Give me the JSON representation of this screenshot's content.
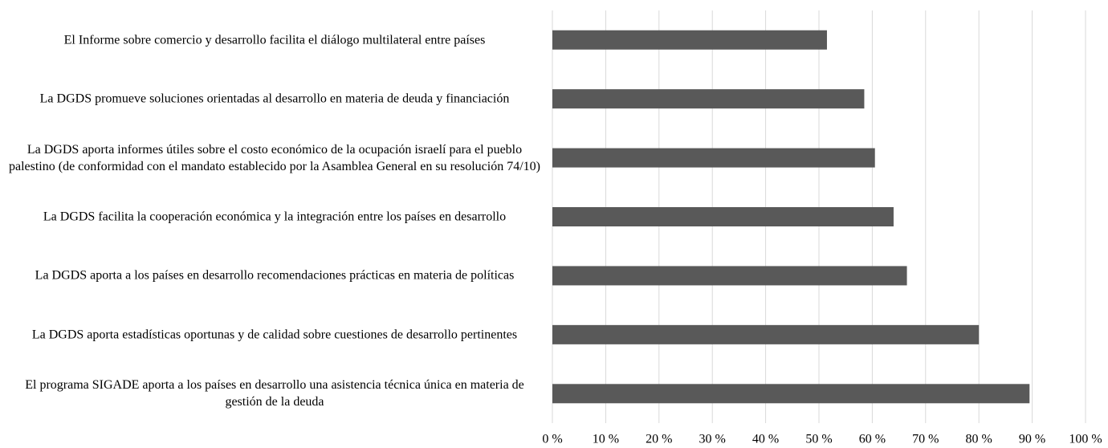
{
  "chart_data": {
    "type": "barh",
    "categories": [
      "El Informe sobre comercio y desarrollo facilita el diálogo multilateral entre países",
      "La DGDS promueve soluciones orientadas al desarrollo en materia de deuda y financiación",
      "La DGDS aporta informes útiles sobre el costo económico de la ocupación israelí para el pueblo palestino (de conformidad con el mandato establecido por la Asamblea General en su resolución 74/10)",
      "La DGDS facilita la cooperación económica y la integración entre los países en desarrollo",
      "La DGDS aporta a los países en desarrollo recomendaciones prácticas en materia de políticas",
      "La DGDS aporta estadísticas oportunas y de calidad sobre cuestiones de desarrollo pertinentes",
      "El programa SIGADE aporta a los países en desarrollo una asistencia técnica única en materia de gestión de la deuda"
    ],
    "values": [
      51.5,
      58.5,
      60.5,
      64,
      66.5,
      80,
      89.5
    ],
    "color": "#595959",
    "xlim": [
      0,
      100
    ],
    "xticks": [
      {
        "value": 0,
        "label": "0 %"
      },
      {
        "value": 10,
        "label": "10 %"
      },
      {
        "value": 20,
        "label": "20 %"
      },
      {
        "value": 30,
        "label": "30 %"
      },
      {
        "value": 40,
        "label": "40 %"
      },
      {
        "value": 50,
        "label": "50 %"
      },
      {
        "value": 60,
        "label": "60 %"
      },
      {
        "value": 70,
        "label": "70 %"
      },
      {
        "value": 80,
        "label": "80 %"
      },
      {
        "value": 90,
        "label": "90 %"
      },
      {
        "value": 100,
        "label": "100 %"
      }
    ],
    "grid": true
  }
}
